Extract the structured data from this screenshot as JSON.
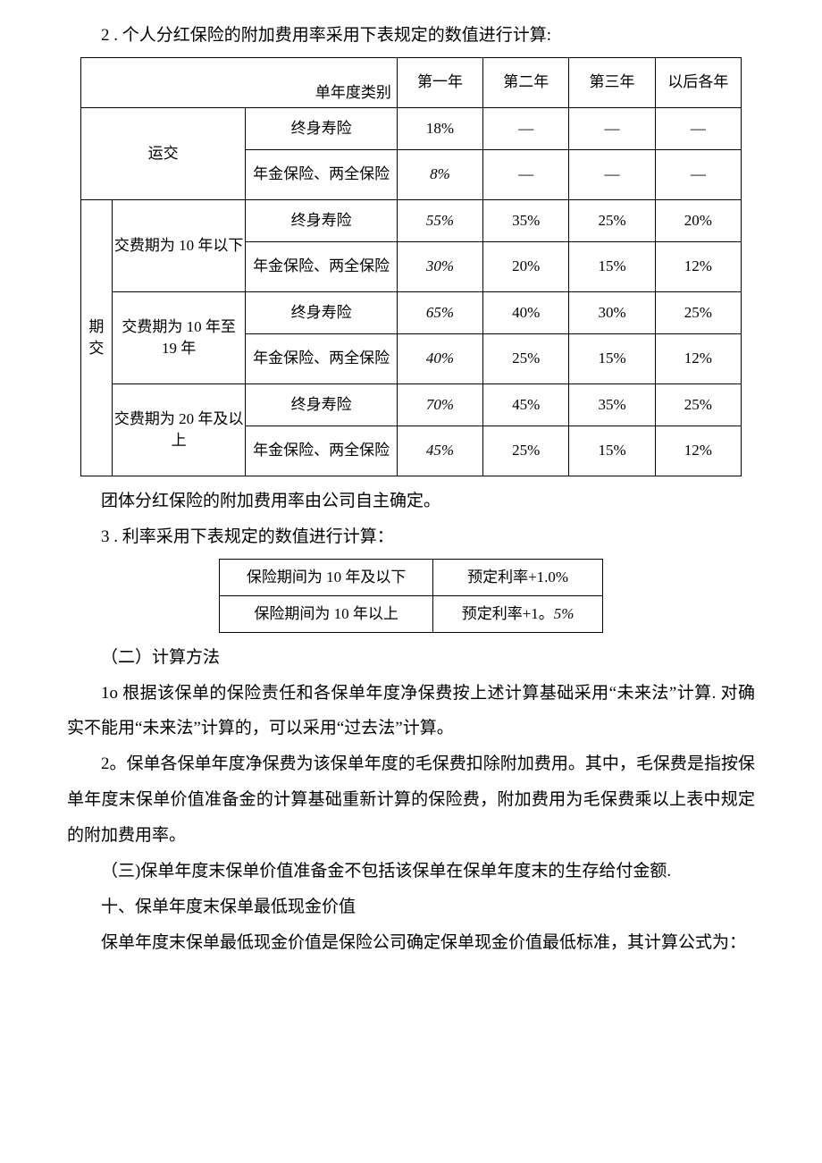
{
  "line_2_intro": "2 . 个人分红保险的附加费用率采用下表规定的数值进行计算:",
  "table1": {
    "corner_label": "单年度类别",
    "headers": [
      "第一年",
      "第二年",
      "第三年",
      "以后各年"
    ],
    "cat1": "运交",
    "cat1_type1": "终身寿险",
    "cat1_type2": "年金保险、两全保险",
    "cat1_row1": [
      "18%",
      "—",
      "—",
      "—"
    ],
    "cat1_row2": [
      "8%",
      "—",
      "—",
      "—"
    ],
    "cat2_head": "期交",
    "cat2_sub1": "交费期为 10 年以下",
    "cat2_sub2": "交费期为 10 年至 19 年",
    "cat2_sub3": "交费期为 20 年及以上",
    "type_whole": "终身寿险",
    "type_ann": "年金保险、两全保险",
    "r_s1_t1": [
      "55%",
      "35%",
      "25%",
      "20%"
    ],
    "r_s1_t2": [
      "30%",
      "20%",
      "15%",
      "12%"
    ],
    "r_s2_t1": [
      "65%",
      "40%",
      "30%",
      "25%"
    ],
    "r_s2_t2": [
      "40%",
      "25%",
      "15%",
      "12%"
    ],
    "r_s3_t1": [
      "70%",
      "45%",
      "35%",
      "25%"
    ],
    "r_s3_t2": [
      "45%",
      "25%",
      "15%",
      "12%"
    ]
  },
  "line_group_note": "团体分红保险的附加费用率由公司自主确定。",
  "line_3_intro": "3 . 利率采用下表规定的数值进行计算：",
  "table2": {
    "r1_l": "保险期间为 10 年及以下",
    "r1_r": "预定利率+1.0%",
    "r2_l": "保险期间为 10 年以上",
    "r2_r_a": "预定利率+1。",
    "r2_r_b": "5%"
  },
  "heading_calc": "（二）计算方法",
  "para_1o": "1o 根据该保单的保险责任和各保单年度净保费按上述计算基础采用“未来法”计算. 对确实不能用“未来法”计算的，可以采用“过去法”计算。",
  "para_2o": "2。保单各保单年度净保费为该保单年度的毛保费扣除附加费用。其中，毛保费是指按保单年度末保单价值准备金的计算基础重新计算的保险费，附加费用为毛保费乘以上表中规定的附加费用率。",
  "para_3": "（三)保单年度末保单价值准备金不包括该保单在保单年度末的生存给付金额.",
  "heading_ten": "十、保单年度末保单最低现金价值",
  "para_ten_body": "保单年度末保单最低现金价值是保险公司确定保单现金价值最低标准，其计算公式为："
}
